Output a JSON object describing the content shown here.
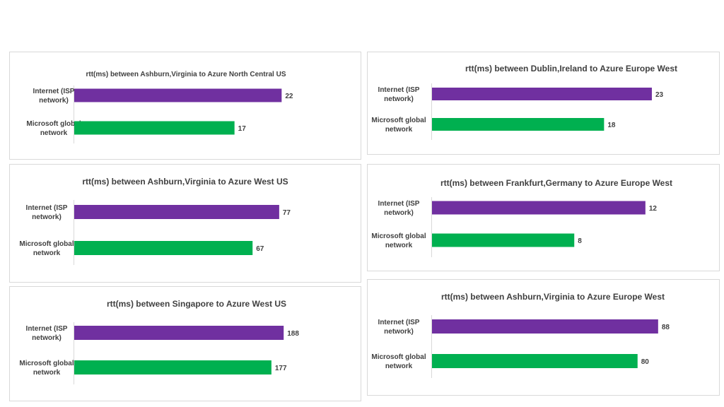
{
  "colors": {
    "internet": "#7030a0",
    "microsoft": "#00b050",
    "text": "#404040",
    "axis": "#d9d9d9"
  },
  "chart_data": [
    {
      "type": "bar",
      "orientation": "horizontal",
      "title": "rtt(ms) between Ashburn,Virginia to Azure North Central US",
      "categories": [
        "Internet (ISP network)",
        "Microsoft global network"
      ],
      "values": [
        22,
        17
      ],
      "xlim": [
        0,
        24
      ]
    },
    {
      "type": "bar",
      "orientation": "horizontal",
      "title": "rtt(ms) between Dublin,Ireland to Azure Europe West",
      "categories": [
        "Internet (ISP network)",
        "Microsoft global network"
      ],
      "values": [
        23,
        18
      ],
      "xlim": [
        0,
        25
      ]
    },
    {
      "type": "bar",
      "orientation": "horizontal",
      "title": "rtt(ms) between Ashburn,Virginia to Azure West US",
      "categories": [
        "Internet (ISP network)",
        "Microsoft global network"
      ],
      "values": [
        77,
        67
      ],
      "xlim": [
        0,
        85
      ]
    },
    {
      "type": "bar",
      "orientation": "horizontal",
      "title": "rtt(ms) between Frankfurt,Germany to Azure Europe West",
      "categories": [
        "Internet (ISP network)",
        "Microsoft global network"
      ],
      "values": [
        12,
        8
      ],
      "xlim": [
        0,
        13
      ]
    },
    {
      "type": "bar",
      "orientation": "horizontal",
      "title": "rtt(ms) between Singapore to Azure West US",
      "categories": [
        "Internet (ISP network)",
        "Microsoft global network"
      ],
      "values": [
        188,
        177
      ],
      "xlim": [
        0,
        205
      ]
    },
    {
      "type": "bar",
      "orientation": "horizontal",
      "title": "rtt(ms) between Ashburn,Virginia to Azure Europe West",
      "categories": [
        "Internet (ISP network)",
        "Microsoft global network"
      ],
      "values": [
        88,
        80
      ],
      "xlim": [
        0,
        93
      ]
    }
  ]
}
